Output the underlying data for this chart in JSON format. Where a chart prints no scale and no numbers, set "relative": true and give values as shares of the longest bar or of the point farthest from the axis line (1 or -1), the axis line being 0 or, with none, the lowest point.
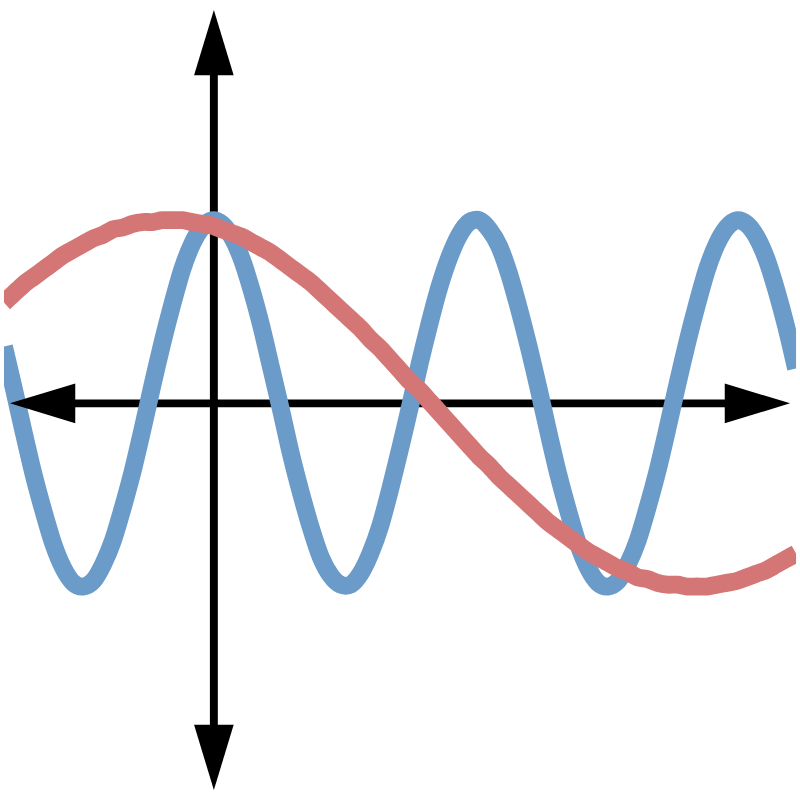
{
  "chart_data": {
    "type": "line",
    "relative": true,
    "marker": "none",
    "line_style": "solid",
    "categories": [
      null,
      null,
      null,
      null,
      null,
      null,
      null,
      null,
      null,
      null,
      null,
      null,
      null,
      null,
      null,
      null,
      null,
      null,
      null,
      null,
      null,
      null,
      null,
      null,
      null,
      null,
      null,
      null,
      null,
      null,
      null,
      null,
      null,
      null,
      null,
      null,
      null,
      null,
      null,
      null,
      null,
      null,
      null,
      null,
      null,
      null,
      null,
      null,
      null,
      null,
      null,
      null,
      null,
      null,
      null,
      null,
      null,
      null,
      null,
      null,
      null,
      null,
      null,
      null,
      null,
      null,
      null,
      null,
      null,
      null,
      null,
      null,
      null,
      null,
      null,
      null,
      null,
      null,
      null,
      null,
      null
    ],
    "series": [
      {
        "color": "#6b9bc9",
        "values": [
          0.31,
          0.08,
          -0.16,
          -0.39,
          -0.59,
          -0.77,
          -0.9,
          -0.98,
          -1,
          -0.97,
          -0.88,
          -0.75,
          -0.57,
          -0.37,
          -0.14,
          0.1,
          0.33,
          0.54,
          0.73,
          0.87,
          0.96,
          1,
          0.98,
          0.91,
          0.79,
          0.62,
          0.42,
          0.19,
          -0.04,
          -0.28,
          -0.49,
          -0.68,
          -0.84,
          -0.94,
          -0.99,
          -0.99,
          -0.93,
          -0.82,
          -0.67,
          -0.47,
          -0.25,
          -0.02,
          0.22,
          0.44,
          0.64,
          0.8,
          0.92,
          0.99,
          1,
          0.95,
          0.86,
          0.71,
          0.52,
          0.31,
          0.08,
          -0.16,
          -0.39,
          -0.59,
          -0.77,
          -0.9,
          -0.98,
          -1,
          -0.97,
          -0.88,
          -0.75,
          -0.57,
          -0.37,
          -0.14,
          0.1,
          0.33,
          0.54,
          0.73,
          0.87,
          0.96,
          1,
          0.98,
          0.91,
          0.79,
          0.62,
          0.42,
          0.19
        ]
      },
      {
        "color": "#d57676",
        "values": [
          0.55,
          0.6,
          0.65,
          0.69,
          0.73,
          0.77,
          0.81,
          0.84,
          0.87,
          0.9,
          0.92,
          0.95,
          0.96,
          0.98,
          0.99,
          0.99,
          1,
          1,
          1,
          0.99,
          0.98,
          0.97,
          0.95,
          0.93,
          0.91,
          0.88,
          0.85,
          0.82,
          0.78,
          0.74,
          0.7,
          0.66,
          0.61,
          0.56,
          0.51,
          0.46,
          0.41,
          0.35,
          0.3,
          0.24,
          0.18,
          0.12,
          0.07,
          0.01,
          -0.05,
          -0.11,
          -0.17,
          -0.23,
          -0.29,
          -0.34,
          -0.4,
          -0.45,
          -0.5,
          -0.55,
          -0.6,
          -0.65,
          -0.69,
          -0.73,
          -0.77,
          -0.81,
          -0.84,
          -0.87,
          -0.9,
          -0.92,
          -0.95,
          -0.96,
          -0.98,
          -0.99,
          -0.99,
          -1,
          -1,
          -1,
          -0.99,
          -0.98,
          -0.97,
          -0.95,
          -0.93,
          -0.91,
          -0.88,
          -0.85,
          -0.82
        ]
      }
    ]
  }
}
